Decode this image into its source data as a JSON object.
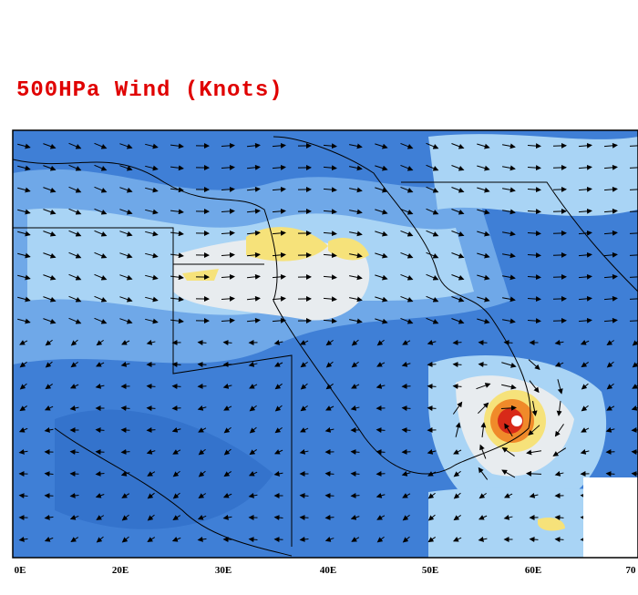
{
  "title": "500HPa Wind (Knots)",
  "x_axis_labels": [
    "0E",
    "20E",
    "30E",
    "40E",
    "50E",
    "60E",
    "70"
  ]
}
